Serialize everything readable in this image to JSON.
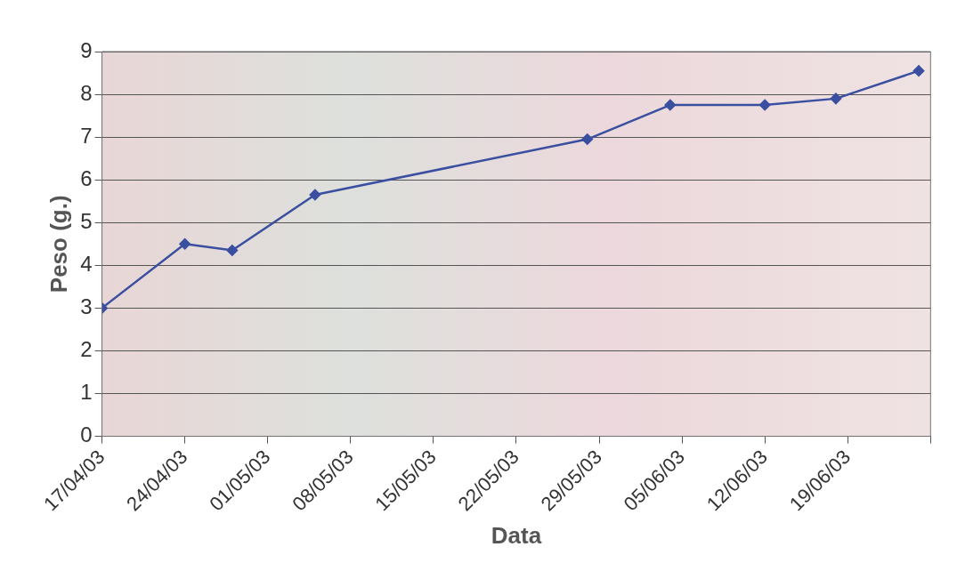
{
  "chart_data": {
    "type": "line",
    "xlabel": "Data",
    "ylabel": "Peso (g.)",
    "x": [
      "--04-17",
      "--04-24",
      "--04-28",
      "--05-05",
      "--05-28",
      "--06-04",
      "--06-12",
      "--06-18",
      "--06-25"
    ],
    "series": [
      {
        "color": "#3a4fa0",
        "values": [
          3.0,
          4.5,
          4.35,
          5.65,
          6.95,
          7.75,
          7.75,
          7.9,
          8.55
        ]
      }
    ],
    "xlim": [
      "--04-17",
      "--06-26"
    ],
    "xticks": [
      {
        "value": "--04-17",
        "label": "17/04/03"
      },
      {
        "value": "--04-24",
        "label": "24/04/03"
      },
      {
        "value": "--05-01",
        "label": "01/05/03"
      },
      {
        "value": "--05-08",
        "label": "08/05/03"
      },
      {
        "value": "--05-15",
        "label": "15/05/03"
      },
      {
        "value": "--05-22",
        "label": "22/05/03"
      },
      {
        "value": "--05-29",
        "label": "29/05/03"
      },
      {
        "value": "--06-05",
        "label": "05/06/03"
      },
      {
        "value": "--06-12",
        "label": "12/06/03"
      },
      {
        "value": "--06-19",
        "label": "19/06/03"
      },
      {
        "value": "--06-26",
        "label": null
      }
    ],
    "ylim": [
      0,
      9
    ],
    "yticks": [
      0,
      1,
      2,
      3,
      4,
      5,
      6,
      7,
      8,
      9
    ],
    "grid": "y",
    "legend": false,
    "marker": "diamond",
    "line_style": "solid"
  }
}
